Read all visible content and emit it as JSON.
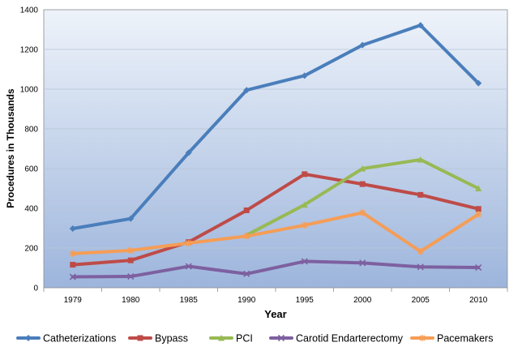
{
  "chart_data": {
    "type": "line",
    "title": "",
    "xlabel": "Year",
    "ylabel": "Procedures in Thousands",
    "categories": [
      "1979",
      "1980",
      "1985",
      "1990",
      "1995",
      "2000",
      "2005",
      "2010"
    ],
    "ylim": [
      0,
      1400
    ],
    "yticks": [
      "0",
      "200",
      "400",
      "600",
      "800",
      "1000",
      "1200",
      "1400"
    ],
    "grid": true,
    "legend_position": "bottom",
    "series": [
      {
        "name": "Catheterizations",
        "color": "#4a7ebb",
        "marker": "diamond",
        "values": [
          298,
          348,
          680,
          995,
          1068,
          1222,
          1322,
          1030
        ]
      },
      {
        "name": "Bypass",
        "color": "#be4b48",
        "marker": "square",
        "values": [
          116,
          138,
          230,
          390,
          572,
          522,
          468,
          397
        ]
      },
      {
        "name": "PCI",
        "color": "#98b954",
        "marker": "triangle",
        "values": [
          null,
          null,
          null,
          265,
          418,
          600,
          645,
          500
        ]
      },
      {
        "name": "Carotid Endarterectomy",
        "color": "#7d60a0",
        "marker": "x",
        "values": [
          55,
          57,
          108,
          70,
          133,
          125,
          105,
          102
        ]
      },
      {
        "name": "Pacemakers",
        "color": "#f59d56",
        "marker": "star",
        "values": [
          172,
          188,
          225,
          260,
          315,
          378,
          183,
          370
        ]
      }
    ]
  }
}
